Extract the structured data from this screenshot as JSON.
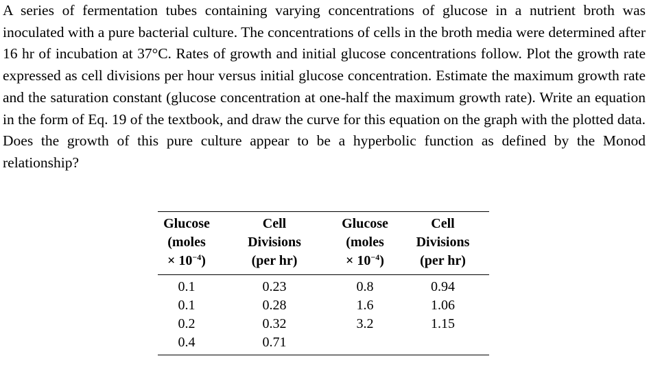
{
  "problem": {
    "text": "A series of fermentation tubes containing varying concentrations of glucose in a nutrient broth was inoculated with a pure bacterial culture. The concentrations of cells in the broth media were determined after 16 hr of incubation at 37°C. Rates of growth and initial glucose concentrations follow. Plot the growth rate expressed as cell divisions per hour versus initial glucose concentration. Estimate the maximum growth rate and the saturation constant (glucose concentration at one-half the maximum growth rate). Write an equation in the form of Eq. 19 of the textbook, and draw the curve for this equation on the graph with the plotted data. Does the growth of this pure culture appear to be a hyperbolic function as defined by the Monod relationship?"
  },
  "table": {
    "headers": {
      "glucose_line1": "Glucose",
      "glucose_line2": "(moles",
      "glucose_line3_base": "× 10",
      "glucose_line3_exp": "−4",
      "glucose_line3_close": ")",
      "cell_line1": "Cell",
      "cell_line2": "Divisions",
      "cell_line3": "(per hr)"
    },
    "rows": [
      {
        "glucose_a": "0.1",
        "cells_a": "0.23",
        "glucose_b": "0.8",
        "cells_b": "0.94"
      },
      {
        "glucose_a": "0.1",
        "cells_a": "0.28",
        "glucose_b": "1.6",
        "cells_b": "1.06"
      },
      {
        "glucose_a": "0.2",
        "cells_a": "0.32",
        "glucose_b": "3.2",
        "cells_b": "1.15"
      },
      {
        "glucose_a": "0.4",
        "cells_a": "0.71",
        "glucose_b": "",
        "cells_b": ""
      }
    ]
  }
}
